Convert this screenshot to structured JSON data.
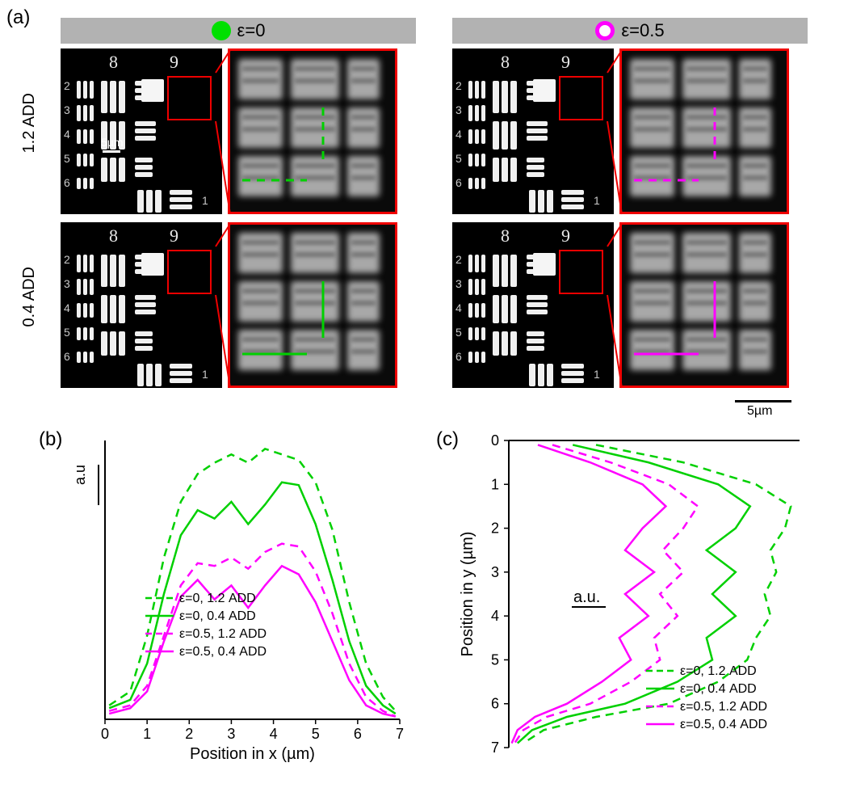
{
  "labels": {
    "a": "(a)",
    "b": "(b)",
    "c": "(c)",
    "header_left": "ε=0",
    "header_right": "ε=0.5",
    "row1": "1.2 ADD",
    "row2": "0.4 ADD",
    "scale_5um": "5µm",
    "au": "a.u",
    "au_dot": "a.u.",
    "x_axis": "Position in x (µm)",
    "y_axis": "Position in y (µm)"
  },
  "colors": {
    "green": "#00d000",
    "magenta": "#ff00ff",
    "red_box": "#ee0000",
    "header_bg": "#b2b2b2",
    "bg": "#ffffff",
    "axis": "#000000"
  },
  "legend_items": [
    {
      "text": "ε=0, 1.2 ADD",
      "color": "#00d000",
      "dash": true
    },
    {
      "text": "ε=0, 0.4 ADD",
      "color": "#00d000",
      "dash": false
    },
    {
      "text": "ε=0.5, 1.2 ADD",
      "color": "#ff00ff",
      "dash": true
    },
    {
      "text": "ε=0.5, 0.4 ADD",
      "color": "#ff00ff",
      "dash": false
    }
  ],
  "chart_b": {
    "type": "line",
    "xlim": [
      0,
      7
    ],
    "ylim": [
      0,
      1.0
    ],
    "xticks": [
      0,
      1,
      2,
      3,
      4,
      5,
      6,
      7
    ],
    "xlabel": "Position in x (µm)",
    "ylabel_unit": "a.u",
    "line_width": 2.5,
    "series": [
      {
        "name": "eps0_1.2ADD",
        "color": "#00d000",
        "dash": true,
        "x": [
          0.1,
          0.6,
          1.0,
          1.4,
          1.8,
          2.2,
          2.6,
          3.0,
          3.4,
          3.8,
          4.2,
          4.6,
          5.0,
          5.4,
          5.8,
          6.2,
          6.6,
          6.9
        ],
        "y": [
          0.05,
          0.1,
          0.3,
          0.58,
          0.78,
          0.88,
          0.92,
          0.95,
          0.92,
          0.97,
          0.95,
          0.93,
          0.85,
          0.68,
          0.42,
          0.2,
          0.08,
          0.03
        ]
      },
      {
        "name": "eps0_0.4ADD",
        "color": "#00d000",
        "dash": false,
        "x": [
          0.1,
          0.6,
          1.0,
          1.4,
          1.8,
          2.2,
          2.6,
          3.0,
          3.4,
          3.8,
          4.2,
          4.6,
          5.0,
          5.4,
          5.8,
          6.2,
          6.6,
          6.9
        ],
        "y": [
          0.04,
          0.07,
          0.2,
          0.45,
          0.66,
          0.75,
          0.72,
          0.78,
          0.7,
          0.77,
          0.85,
          0.84,
          0.7,
          0.5,
          0.28,
          0.12,
          0.05,
          0.02
        ]
      },
      {
        "name": "eps05_1.2ADD",
        "color": "#ff00ff",
        "dash": true,
        "x": [
          0.1,
          0.6,
          1.0,
          1.4,
          1.8,
          2.2,
          2.6,
          3.0,
          3.4,
          3.8,
          4.2,
          4.6,
          5.0,
          5.4,
          5.8,
          6.2,
          6.6,
          6.9
        ],
        "y": [
          0.03,
          0.05,
          0.12,
          0.3,
          0.48,
          0.56,
          0.55,
          0.58,
          0.54,
          0.6,
          0.63,
          0.62,
          0.53,
          0.38,
          0.2,
          0.08,
          0.03,
          0.01
        ]
      },
      {
        "name": "eps05_0.4ADD",
        "color": "#ff00ff",
        "dash": false,
        "x": [
          0.1,
          0.6,
          1.0,
          1.4,
          1.8,
          2.2,
          2.6,
          3.0,
          3.4,
          3.8,
          4.2,
          4.6,
          5.0,
          5.4,
          5.8,
          6.2,
          6.6,
          6.9
        ],
        "y": [
          0.02,
          0.04,
          0.1,
          0.28,
          0.44,
          0.5,
          0.43,
          0.48,
          0.4,
          0.48,
          0.55,
          0.52,
          0.42,
          0.28,
          0.14,
          0.05,
          0.02,
          0.01
        ]
      }
    ]
  },
  "chart_c": {
    "type": "line",
    "ylim": [
      0,
      7
    ],
    "xlim": [
      0,
      1.0
    ],
    "yticks": [
      0,
      1,
      2,
      3,
      4,
      5,
      6,
      7
    ],
    "ylabel": "Position in y (µm)",
    "xlabel_unit": "a.u.",
    "line_width": 2.5,
    "y_inverted": true,
    "series": [
      {
        "name": "eps0_1.2ADD",
        "color": "#00d000",
        "dash": true,
        "y": [
          0.1,
          0.5,
          1.0,
          1.5,
          2.0,
          2.5,
          3.0,
          3.5,
          4.0,
          4.5,
          5.0,
          5.5,
          6.0,
          6.3,
          6.6,
          6.9
        ],
        "x": [
          0.3,
          0.6,
          0.85,
          0.97,
          0.95,
          0.9,
          0.92,
          0.88,
          0.9,
          0.85,
          0.82,
          0.72,
          0.55,
          0.3,
          0.12,
          0.05
        ]
      },
      {
        "name": "eps0_0.4ADD",
        "color": "#00d000",
        "dash": false,
        "y": [
          0.1,
          0.5,
          1.0,
          1.5,
          2.0,
          2.5,
          3.0,
          3.5,
          4.0,
          4.5,
          5.0,
          5.5,
          6.0,
          6.3,
          6.6,
          6.9
        ],
        "x": [
          0.22,
          0.48,
          0.72,
          0.83,
          0.78,
          0.68,
          0.78,
          0.7,
          0.78,
          0.68,
          0.7,
          0.58,
          0.4,
          0.2,
          0.08,
          0.03
        ]
      },
      {
        "name": "eps05_1.2ADD",
        "color": "#ff00ff",
        "dash": true,
        "y": [
          0.1,
          0.5,
          1.0,
          1.5,
          2.0,
          2.5,
          3.0,
          3.5,
          4.0,
          4.5,
          5.0,
          5.5,
          6.0,
          6.3,
          6.6,
          6.9
        ],
        "x": [
          0.15,
          0.35,
          0.55,
          0.65,
          0.6,
          0.53,
          0.6,
          0.52,
          0.58,
          0.5,
          0.52,
          0.42,
          0.28,
          0.13,
          0.05,
          0.02
        ]
      },
      {
        "name": "eps05_0.4ADD",
        "color": "#ff00ff",
        "dash": false,
        "y": [
          0.1,
          0.5,
          1.0,
          1.5,
          2.0,
          2.5,
          3.0,
          3.5,
          4.0,
          4.5,
          5.0,
          5.5,
          6.0,
          6.3,
          6.6,
          6.9
        ],
        "x": [
          0.1,
          0.28,
          0.46,
          0.54,
          0.46,
          0.4,
          0.5,
          0.4,
          0.48,
          0.38,
          0.42,
          0.32,
          0.2,
          0.09,
          0.03,
          0.01
        ]
      }
    ]
  }
}
